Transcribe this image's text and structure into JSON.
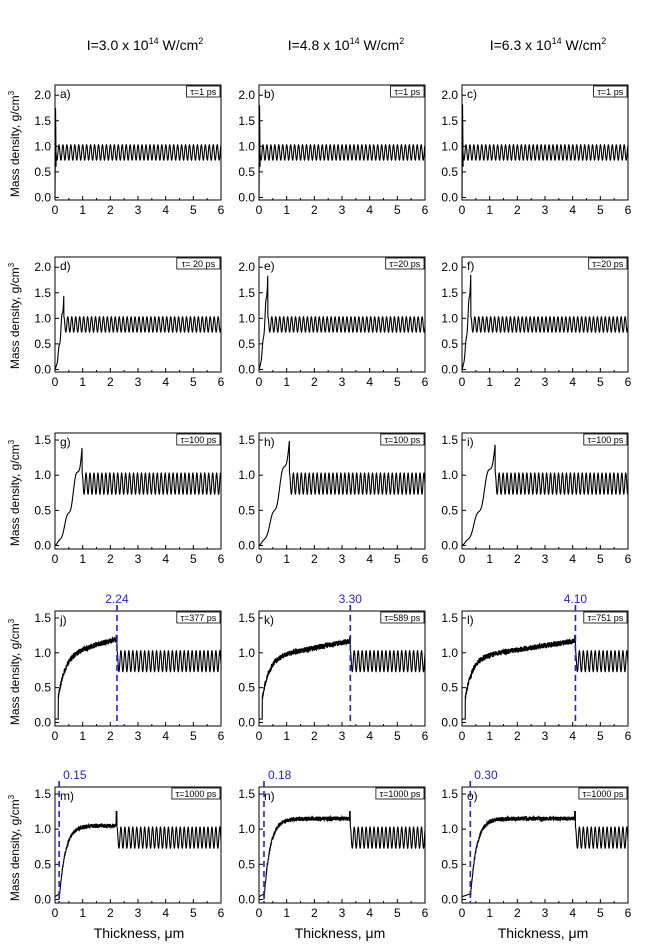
{
  "column_titles": [
    {
      "base": "I=3.0 x 10",
      "exp": "14",
      "unit": " W/cm",
      "unit_exp": "2"
    },
    {
      "base": "I=4.8 x 10",
      "exp": "14",
      "unit": " W/cm",
      "unit_exp": "2"
    },
    {
      "base": "I=6.3 x 10",
      "exp": "14",
      "unit": " W/cm",
      "unit_exp": "2"
    }
  ],
  "ylabel": {
    "text": "Mass density, g/cm",
    "exp": "3"
  },
  "xlabel": {
    "text": "Thickness, ",
    "unit": "μm"
  },
  "style": {
    "line_color": "#000000",
    "marker_color": "#1f1fe0",
    "frame_color": "#000000"
  },
  "chart_data": [
    {
      "type": "line",
      "panel": "a)",
      "time_label": "τ=1 ps",
      "ylim": [
        -0.05,
        2.2
      ],
      "yticks": [
        "0.0",
        "0.5",
        "1.0",
        "1.5",
        "2.0"
      ],
      "xlim": [
        0,
        6
      ],
      "xticks": [
        "0",
        "1",
        "2",
        "3",
        "4",
        "5",
        "6"
      ],
      "front": 0.0,
      "peak": 1.75,
      "mean": 0.88,
      "amp": 0.15,
      "plateau": null,
      "marker": null
    },
    {
      "type": "line",
      "panel": "b)",
      "time_label": "τ=1 ps",
      "ylim": [
        -0.05,
        2.2
      ],
      "yticks": [
        "0.0",
        "0.5",
        "1.0",
        "1.5",
        "2.0"
      ],
      "xlim": [
        0,
        6
      ],
      "xticks": [
        "0",
        "1",
        "2",
        "3",
        "4",
        "5",
        "6"
      ],
      "front": 0.0,
      "peak": 1.8,
      "mean": 0.88,
      "amp": 0.15,
      "plateau": null,
      "marker": null
    },
    {
      "type": "line",
      "panel": "c)",
      "time_label": "τ=1 ps",
      "ylim": [
        -0.05,
        2.2
      ],
      "yticks": [
        "0.0",
        "0.5",
        "1.0",
        "1.5",
        "2.0"
      ],
      "xlim": [
        0,
        6
      ],
      "xticks": [
        "0",
        "1",
        "2",
        "3",
        "4",
        "5",
        "6"
      ],
      "front": 0.0,
      "peak": 1.82,
      "mean": 0.88,
      "amp": 0.15,
      "plateau": null,
      "marker": null
    },
    {
      "type": "line",
      "panel": "d)",
      "time_label": "τ= 20 ps",
      "ylim": [
        -0.05,
        2.2
      ],
      "yticks": [
        "0.0",
        "0.5",
        "1.0",
        "1.5",
        "2.0"
      ],
      "xlim": [
        0,
        6
      ],
      "xticks": [
        "0",
        "1",
        "2",
        "3",
        "4",
        "5",
        "6"
      ],
      "front": 0.32,
      "peak": 1.48,
      "mean": 0.88,
      "amp": 0.15,
      "plateau": null,
      "marker": null
    },
    {
      "type": "line",
      "panel": "e)",
      "time_label": "τ=20 ps",
      "ylim": [
        -0.05,
        2.2
      ],
      "yticks": [
        "0.0",
        "0.5",
        "1.0",
        "1.5",
        "2.0"
      ],
      "xlim": [
        0,
        6
      ],
      "xticks": [
        "0",
        "1",
        "2",
        "3",
        "4",
        "5",
        "6"
      ],
      "front": 0.32,
      "peak": 1.88,
      "mean": 0.88,
      "amp": 0.15,
      "plateau": null,
      "marker": null
    },
    {
      "type": "line",
      "panel": "f)",
      "time_label": "τ=20 ps",
      "ylim": [
        -0.05,
        2.2
      ],
      "yticks": [
        "0.0",
        "0.5",
        "1.0",
        "1.5",
        "2.0"
      ],
      "xlim": [
        0,
        6
      ],
      "xticks": [
        "0",
        "1",
        "2",
        "3",
        "4",
        "5",
        "6"
      ],
      "front": 0.32,
      "peak": 1.9,
      "mean": 0.88,
      "amp": 0.15,
      "plateau": null,
      "marker": null
    },
    {
      "type": "line",
      "panel": "g)",
      "time_label": "τ=100 ps",
      "ylim": [
        -0.05,
        1.6
      ],
      "yticks": [
        "0.0",
        "0.5",
        "1.0",
        "1.5"
      ],
      "xlim": [
        0,
        6
      ],
      "xticks": [
        "0",
        "1",
        "2",
        "3",
        "4",
        "5",
        "6"
      ],
      "front": 0.98,
      "peak": 1.4,
      "mean": 0.88,
      "amp": 0.15,
      "plateau": null,
      "marker": null
    },
    {
      "type": "line",
      "panel": "h)",
      "time_label": "τ=100 ps",
      "ylim": [
        -0.05,
        1.6
      ],
      "yticks": [
        "0.0",
        "0.5",
        "1.0",
        "1.5"
      ],
      "xlim": [
        0,
        6
      ],
      "xticks": [
        "0",
        "1",
        "2",
        "3",
        "4",
        "5",
        "6"
      ],
      "front": 1.1,
      "peak": 1.5,
      "mean": 0.88,
      "amp": 0.15,
      "plateau": null,
      "marker": null
    },
    {
      "type": "line",
      "panel": "i)",
      "time_label": "τ=100 ps",
      "ylim": [
        -0.05,
        1.6
      ],
      "yticks": [
        "0.0",
        "0.5",
        "1.0",
        "1.5"
      ],
      "xlim": [
        0,
        6
      ],
      "xticks": [
        "0",
        "1",
        "2",
        "3",
        "4",
        "5",
        "6"
      ],
      "front": 1.2,
      "peak": 1.45,
      "mean": 0.88,
      "amp": 0.15,
      "plateau": null,
      "marker": null
    },
    {
      "type": "line",
      "panel": "j)",
      "time_label": "τ=377 ps",
      "ylim": [
        -0.05,
        1.6
      ],
      "yticks": [
        "0.0",
        "0.5",
        "1.0",
        "1.5"
      ],
      "xlim": [
        0,
        6
      ],
      "xticks": [
        "0",
        "1",
        "2",
        "3",
        "4",
        "5",
        "6"
      ],
      "front": 2.24,
      "peak": 1.25,
      "mean": 0.88,
      "amp": 0.15,
      "plateau": 1.15,
      "marker": {
        "x": 2.24,
        "label": "2.24"
      }
    },
    {
      "type": "line",
      "panel": "k)",
      "time_label": "τ=589 ps",
      "ylim": [
        -0.05,
        1.6
      ],
      "yticks": [
        "0.0",
        "0.5",
        "1.0",
        "1.5"
      ],
      "xlim": [
        0,
        6
      ],
      "xticks": [
        "0",
        "1",
        "2",
        "3",
        "4",
        "5",
        "6"
      ],
      "front": 3.3,
      "peak": 1.22,
      "mean": 0.88,
      "amp": 0.15,
      "plateau": 1.12,
      "marker": {
        "x": 3.3,
        "label": "3.30"
      }
    },
    {
      "type": "line",
      "panel": "l)",
      "time_label": "τ=751 ps",
      "ylim": [
        -0.05,
        1.6
      ],
      "yticks": [
        "0.0",
        "0.5",
        "1.0",
        "1.5"
      ],
      "xlim": [
        0,
        6
      ],
      "xticks": [
        "0",
        "1",
        "2",
        "3",
        "4",
        "5",
        "6"
      ],
      "front": 4.1,
      "peak": 1.25,
      "mean": 0.88,
      "amp": 0.15,
      "plateau": 1.12,
      "marker": {
        "x": 4.1,
        "label": "4.10"
      }
    },
    {
      "type": "line",
      "panel": "m)",
      "time_label": "τ=1000 ps",
      "ylim": [
        -0.05,
        1.6
      ],
      "yticks": [
        "0.0",
        "0.5",
        "1.0",
        "1.5"
      ],
      "xlim": [
        0,
        6
      ],
      "xticks": [
        "0",
        "1",
        "2",
        "3",
        "4",
        "5",
        "6"
      ],
      "front": 2.24,
      "peak": 1.25,
      "mean": 0.88,
      "amp": 0.15,
      "plateau": 1.05,
      "marker": {
        "x": 0.15,
        "label": "0.15"
      }
    },
    {
      "type": "line",
      "panel": "n)",
      "time_label": "τ=1000 ps",
      "ylim": [
        -0.05,
        1.6
      ],
      "yticks": [
        "0.0",
        "0.5",
        "1.0",
        "1.5"
      ],
      "xlim": [
        0,
        6
      ],
      "xticks": [
        "0",
        "1",
        "2",
        "3",
        "4",
        "5",
        "6"
      ],
      "front": 3.3,
      "peak": 1.25,
      "mean": 0.88,
      "amp": 0.15,
      "plateau": 1.15,
      "marker": {
        "x": 0.18,
        "label": "0.18"
      }
    },
    {
      "type": "line",
      "panel": "o)",
      "time_label": "τ=1000 ps",
      "ylim": [
        -0.05,
        1.6
      ],
      "yticks": [
        "0.0",
        "0.5",
        "1.0",
        "1.5"
      ],
      "xlim": [
        0,
        6
      ],
      "xticks": [
        "0",
        "1",
        "2",
        "3",
        "4",
        "5",
        "6"
      ],
      "front": 4.1,
      "peak": 1.25,
      "mean": 0.88,
      "amp": 0.15,
      "plateau": 1.15,
      "marker": {
        "x": 0.3,
        "label": "0.30"
      }
    }
  ]
}
